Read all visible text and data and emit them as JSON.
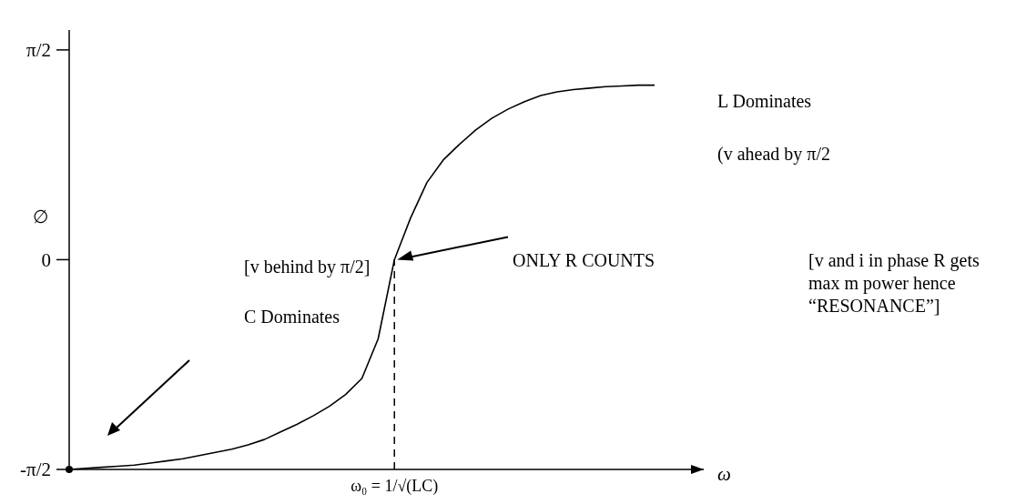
{
  "chart_data": {
    "type": "line",
    "xlabel": "ω",
    "ylabel": "∅",
    "categories": [
      null,
      null,
      null,
      null,
      null,
      null,
      null,
      null,
      null,
      null,
      null,
      null,
      null,
      null,
      null,
      null,
      null,
      null,
      null,
      null,
      "ω₀ = 1/√(LC)",
      null,
      null,
      null,
      null,
      null,
      null,
      null,
      null,
      null,
      null,
      null,
      null,
      null,
      null,
      null,
      null
    ],
    "ylim": [
      -1.571,
      1.72
    ],
    "yticks": [
      {
        "value": -1.571,
        "label": "-π/2"
      },
      {
        "value": 0,
        "label": "0"
      },
      {
        "value": 1.571,
        "label": "π/2"
      }
    ],
    "series": [
      {
        "color": "#000000",
        "line_style": "solid",
        "values": [
          -1.571,
          -1.563,
          -1.555,
          -1.547,
          -1.539,
          -1.523,
          -1.507,
          -1.491,
          -1.467,
          -1.443,
          -1.419,
          -1.387,
          -1.347,
          -1.29,
          -1.234,
          -1.17,
          -1.098,
          -1.01,
          -0.89,
          -0.593,
          0,
          0.314,
          0.578,
          0.746,
          0.864,
          0.971,
          1.06,
          1.128,
          1.184,
          1.229,
          1.257,
          1.274,
          1.285,
          1.296,
          1.301,
          1.307,
          1.307
        ]
      }
    ],
    "ref_lines": [
      {
        "axis": "x",
        "value": "ω₀ = 1/√(LC)",
        "line_style": "dashed",
        "color": "#000000"
      }
    ],
    "annotations": [
      "L Dominates",
      "(v ahead by π/2",
      "[v behind by π/2]",
      "C Dominates",
      "ONLY R COUNTS",
      "[v and i in phase R gets max m power hence “RESONANCE”]"
    ]
  }
}
